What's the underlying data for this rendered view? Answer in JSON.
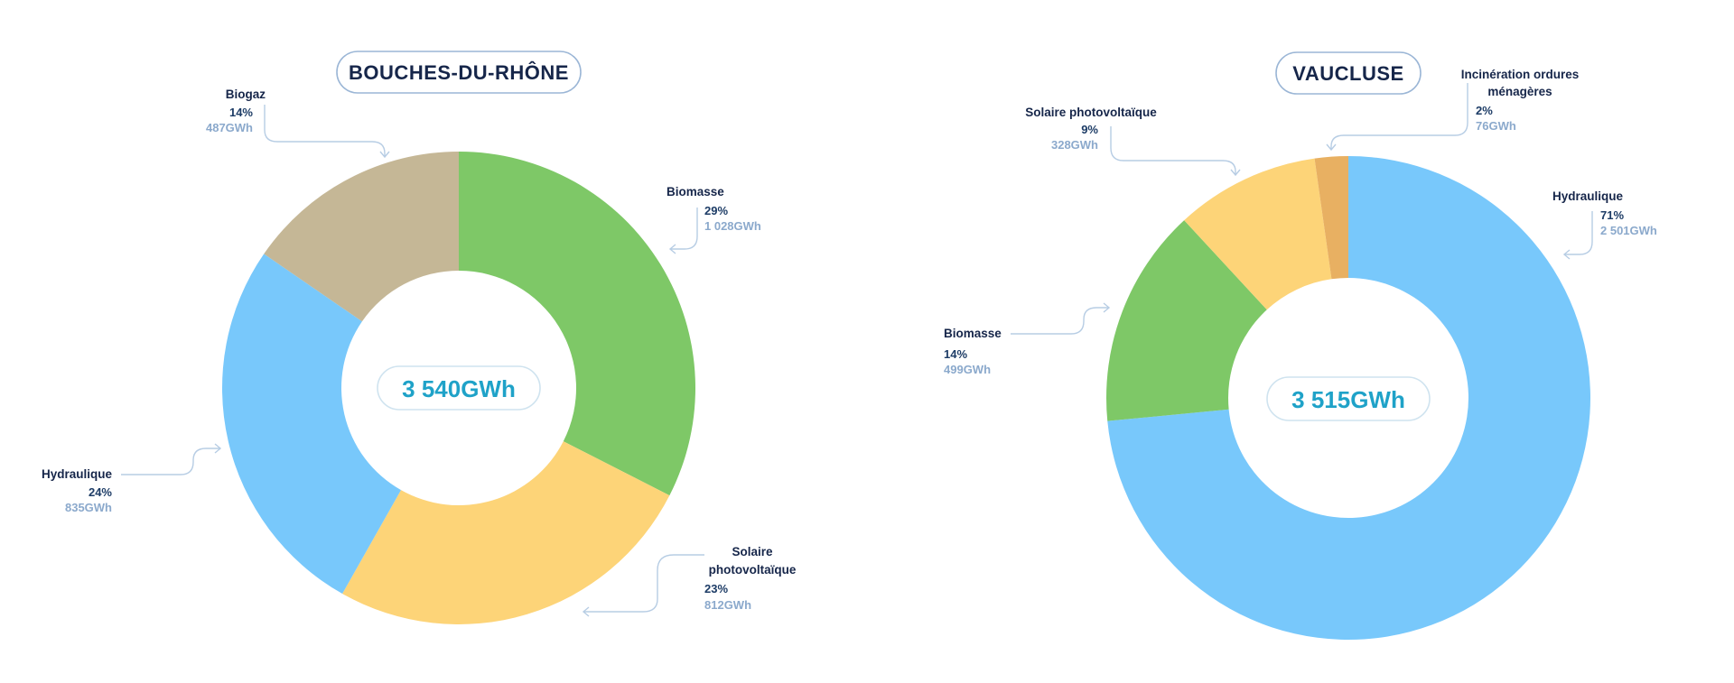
{
  "chart_data": [
    {
      "type": "pie",
      "title": "BOUCHES-DU-RHÔNE",
      "total_label": "3 540GWh",
      "slices": [
        {
          "name": "Biomasse",
          "percent_label": "29%",
          "value": 1028,
          "value_label": "1 028GWh",
          "color": "#7ec867"
        },
        {
          "name": "Solaire photovoltaïque",
          "name_lines": [
            "Solaire",
            "photovoltaïque"
          ],
          "percent_label": "23%",
          "value": 812,
          "value_label": "812GWh",
          "color": "#fdd478"
        },
        {
          "name": "Hydraulique",
          "percent_label": "24%",
          "value": 835,
          "value_label": "835GWh",
          "color": "#78c8fb"
        },
        {
          "name": "Biogaz",
          "percent_label": "14%",
          "value": 487,
          "value_label": "487GWh",
          "color": "#c5b796"
        }
      ]
    },
    {
      "type": "pie",
      "title": "VAUCLUSE",
      "total_label": "3 515GWh",
      "slices": [
        {
          "name": "Hydraulique",
          "percent_label": "71%",
          "value": 2501,
          "value_label": "2 501GWh",
          "color": "#78c8fb"
        },
        {
          "name": "Biomasse",
          "percent_label": "14%",
          "value": 499,
          "value_label": "499GWh",
          "color": "#7ec867"
        },
        {
          "name": "Solaire photovoltaïque",
          "name_lines": [
            "Solaire photovoltaïque"
          ],
          "percent_label": "9%",
          "value": 328,
          "value_label": "328GWh",
          "color": "#fdd478"
        },
        {
          "name": "Incinération ordures ménagères",
          "name_lines": [
            "Incinération ordures",
            "ménagères"
          ],
          "percent_label": "2%",
          "value": 76,
          "value_label": "76GWh",
          "color": "#e8b062"
        }
      ]
    }
  ]
}
